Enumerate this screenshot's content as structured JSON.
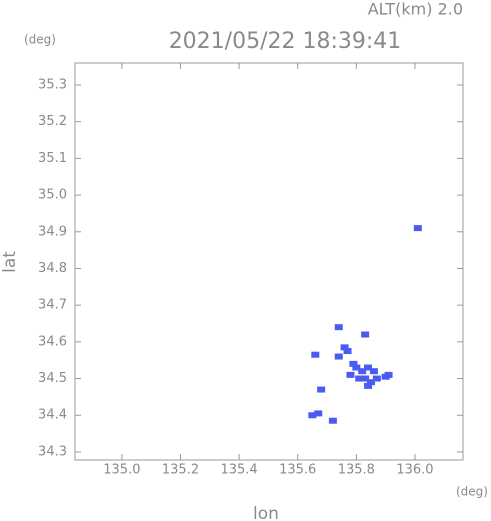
{
  "chart_data": {
    "type": "scatter",
    "title": "2021/05/22 18:39:41",
    "subtitle": "ALT(km) 2.0",
    "x_unit": "(deg)",
    "y_unit": "(deg)",
    "x_label": "lon",
    "y_label": "lat",
    "color": "#4a5cf0",
    "x": [
      136.01,
      135.74,
      135.83,
      135.66,
      135.76,
      135.77,
      135.74,
      135.8,
      135.82,
      135.84,
      135.86,
      135.83,
      135.85,
      135.87,
      135.84,
      135.81,
      135.79,
      135.78,
      135.91,
      135.9,
      135.68,
      135.67,
      135.65,
      135.72
    ],
    "y": [
      34.91,
      34.64,
      34.62,
      34.565,
      34.585,
      34.575,
      34.56,
      34.53,
      34.52,
      34.53,
      34.52,
      34.5,
      34.49,
      34.5,
      34.48,
      34.5,
      34.54,
      34.51,
      34.51,
      34.505,
      34.47,
      34.405,
      34.4,
      34.385
    ],
    "xlim": [
      134.84,
      136.164
    ],
    "ylim": [
      34.278,
      35.36
    ],
    "xticks": [
      {
        "value": 135,
        "label": "135.0"
      },
      135.2,
      135.4,
      135.6,
      135.8,
      {
        "value": 136,
        "label": "136.0"
      }
    ],
    "yticks": [
      34.3,
      34.4,
      34.5,
      34.6,
      34.7,
      34.8,
      34.9,
      {
        "value": 35,
        "label": "35.0"
      },
      35.1,
      35.2,
      35.3
    ]
  }
}
